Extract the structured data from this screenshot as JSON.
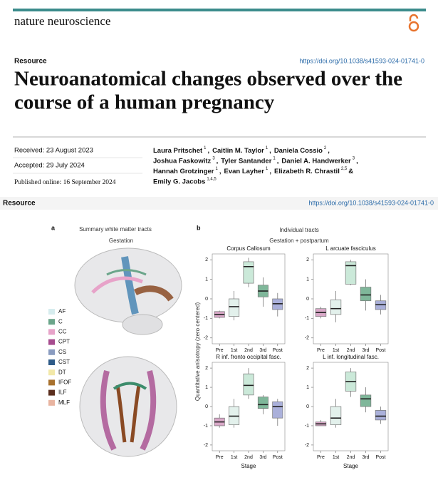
{
  "header": {
    "journal": "nature neuroscience",
    "section": "Resource",
    "doi": "https://doi.org/10.1038/s41593-024-01741-0"
  },
  "article": {
    "title_lines": [
      "Neuroanatomical changes observed over the",
      "course of a human pregnancy"
    ],
    "dates": [
      "Received: 23 August 2023",
      "Accepted: 29 July 2024",
      "Published online: 16 September 2024"
    ],
    "authors": [
      [
        {
          "name": "Laura Pritschet",
          "sup": "1",
          "after": ","
        },
        {
          "name": "Caitlin M. Taylor",
          "sup": "1",
          "after": ","
        },
        {
          "name": "Daniela Cossio",
          "sup": "2",
          "after": ","
        }
      ],
      [
        {
          "name": "Joshua Faskowitz",
          "sup": "3",
          "after": ","
        },
        {
          "name": "Tyler Santander",
          "sup": "1",
          "after": ","
        },
        {
          "name": "Daniel A. Handwerker",
          "sup": "3",
          "after": ","
        }
      ],
      [
        {
          "name": "Hannah Grotzinger",
          "sup": "1",
          "after": ","
        },
        {
          "name": "Evan Layher",
          "sup": "1",
          "after": ","
        },
        {
          "name": "Elizabeth R. Chrastil",
          "sup": "2,5",
          "after": "&"
        }
      ],
      [
        {
          "name": "Emily G. Jacobs",
          "sup": "1,4,5",
          "after": ""
        }
      ]
    ]
  },
  "bar": {
    "section": "Resource",
    "doi": "https://doi.org/10.1038/s41593-024-01741-0"
  },
  "figure": {
    "panel_a": {
      "label": "a",
      "title": "Summary white matter tracts",
      "subtitle": "Gestation",
      "legend": [
        {
          "label": "AF",
          "color": "#d6ecee"
        },
        {
          "label": "C",
          "color": "#6aa58a"
        },
        {
          "label": "CC",
          "color": "#e7a3c9"
        },
        {
          "label": "CPT",
          "color": "#a64b8e"
        },
        {
          "label": "CS",
          "color": "#8a9cc0"
        },
        {
          "label": "CST",
          "color": "#2e5b88"
        },
        {
          "label": "DT",
          "color": "#f2e8a8"
        },
        {
          "label": "IFOF",
          "color": "#a8712e"
        },
        {
          "label": "ILF",
          "color": "#5b2e1e"
        },
        {
          "label": "MLF",
          "color": "#e8b4a0"
        }
      ]
    },
    "panel_b": {
      "label": "b",
      "title": "Individual tracts",
      "subtitle": "Gestation + postpartum",
      "y_label": "Quantitative anisotropy (zero centered)"
    }
  },
  "chart_data": [
    {
      "type": "box",
      "title": "Corpus Callosum",
      "categories": [
        "Pre",
        "1st",
        "2nd",
        "3rd",
        "Post"
      ],
      "colors": [
        "#d9a8c8",
        "#e3f1ec",
        "#cbe9d9",
        "#7fb79a",
        "#aab0da"
      ],
      "whisker_low": [
        -1.0,
        -1.1,
        0.6,
        -0.4,
        -0.9
      ],
      "q1": [
        -0.95,
        -0.9,
        0.8,
        0.1,
        -0.55
      ],
      "median": [
        -0.8,
        -0.4,
        1.65,
        0.4,
        -0.25
      ],
      "q3": [
        -0.65,
        0.0,
        1.9,
        0.7,
        0.0
      ],
      "whisker_high": [
        -0.6,
        0.4,
        2.1,
        1.1,
        0.3
      ],
      "ylim": [
        -2.3,
        2.3
      ],
      "yticks": [
        -2,
        -1,
        0,
        1,
        2
      ]
    },
    {
      "type": "box",
      "title": "L arcuate fasciculus",
      "categories": [
        "Pre",
        "1st",
        "2nd",
        "3rd",
        "Post"
      ],
      "colors": [
        "#d9a8c8",
        "#e3f1ec",
        "#cbe9d9",
        "#7fb79a",
        "#aab0da"
      ],
      "whisker_low": [
        -1.0,
        -1.2,
        0.7,
        -0.6,
        -0.8
      ],
      "q1": [
        -0.9,
        -0.8,
        0.75,
        -0.1,
        -0.55
      ],
      "median": [
        -0.7,
        -0.5,
        1.7,
        0.2,
        -0.3
      ],
      "q3": [
        -0.5,
        -0.05,
        1.9,
        0.6,
        -0.1
      ],
      "whisker_high": [
        -0.4,
        0.4,
        2.0,
        1.0,
        0.2
      ],
      "ylim": [
        -2.3,
        2.3
      ],
      "yticks": [
        -2,
        -1,
        0,
        1,
        2
      ]
    },
    {
      "type": "box",
      "title": "R inf. fronto occipital fasc.",
      "categories": [
        "Pre",
        "1st",
        "2nd",
        "3rd",
        "Post"
      ],
      "xlabel": "Stage",
      "colors": [
        "#d9a8c8",
        "#e3f1ec",
        "#cbe9d9",
        "#7fb79a",
        "#aab0da"
      ],
      "whisker_low": [
        -1.1,
        -1.1,
        0.4,
        -0.4,
        -1.0
      ],
      "q1": [
        -1.0,
        -0.95,
        0.6,
        -0.1,
        -0.6
      ],
      "median": [
        -0.8,
        -0.5,
        1.1,
        0.1,
        0.0
      ],
      "q3": [
        -0.6,
        0.0,
        1.7,
        0.5,
        0.25
      ],
      "whisker_high": [
        -0.4,
        0.4,
        2.0,
        0.6,
        0.4
      ],
      "ylim": [
        -2.3,
        2.3
      ],
      "yticks": [
        -2,
        -1,
        0,
        1,
        2
      ]
    },
    {
      "type": "box",
      "title": "L inf. longitudinal fasc.",
      "categories": [
        "Pre",
        "1st",
        "2nd",
        "3rd",
        "Post"
      ],
      "xlabel": "Stage",
      "colors": [
        "#d9a8c8",
        "#e3f1ec",
        "#cbe9d9",
        "#7fb79a",
        "#aab0da"
      ],
      "whisker_low": [
        -1.0,
        -1.1,
        0.5,
        -0.3,
        -0.9
      ],
      "q1": [
        -1.0,
        -0.95,
        0.8,
        0.0,
        -0.7
      ],
      "median": [
        -0.9,
        -0.6,
        1.3,
        0.4,
        -0.5
      ],
      "q3": [
        -0.8,
        0.0,
        1.8,
        0.6,
        -0.2
      ],
      "whisker_high": [
        -0.7,
        0.4,
        2.0,
        1.0,
        0.0
      ],
      "ylim": [
        -2.3,
        2.3
      ],
      "yticks": [
        -2,
        -1,
        0,
        1,
        2
      ]
    }
  ]
}
